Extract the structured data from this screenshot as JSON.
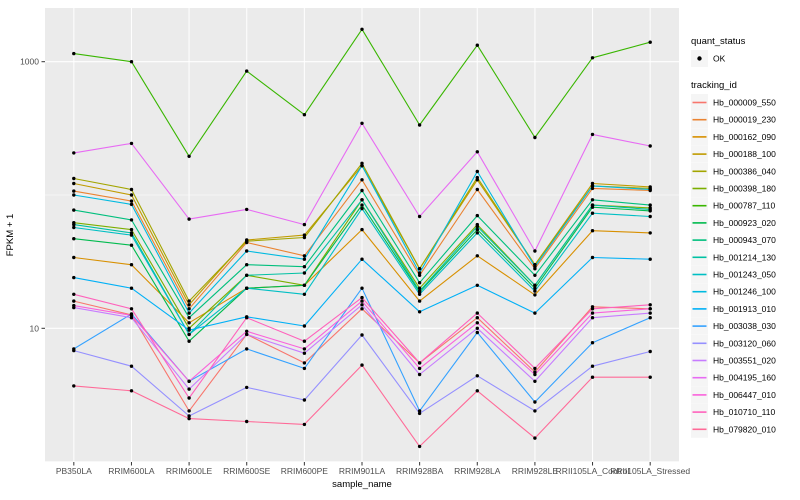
{
  "chart_data": {
    "type": "line",
    "title": "",
    "xlabel": "sample_name",
    "ylabel": "FPKM + 1",
    "y_scale": "log10",
    "y_tick_labels": [
      "1000",
      "10"
    ],
    "y_ticks": [
      1000,
      10
    ],
    "y_minor_gridlines": [
      100,
      1
    ],
    "ylim": [
      0.85,
      2500
    ],
    "grid": true,
    "panel_bg": "#EBEBEB",
    "grid_color": "#FFFFFF",
    "point_color": "#000000",
    "axis_text_color": "#4D4D4D",
    "categories": [
      "PB350LA",
      "RRIM600LA",
      "RRIM600LE",
      "RRIM600SE",
      "RRIM600PE",
      "RRIM901LA",
      "RRIM928BA",
      "RRIM928LA",
      "RRIM928LE",
      "RRII105LA_Control",
      "RRII105LA_Stressed"
    ],
    "series": [
      {
        "name": "Hb_000009_550",
        "color": "#F8766D",
        "values": [
          16,
          12.6,
          2.4,
          9,
          5.5,
          14,
          5.5,
          12,
          4.7,
          14.5,
          14
        ]
      },
      {
        "name": "Hb_000019_230",
        "color": "#EA8331",
        "values": [
          107,
          90,
          14,
          44,
          35,
          130,
          25,
          110,
          28,
          112,
          108
        ]
      },
      {
        "name": "Hb_000162_090",
        "color": "#D89000",
        "values": [
          34,
          30,
          11,
          20,
          21,
          55,
          16,
          35,
          17.8,
          54,
          52
        ]
      },
      {
        "name": "Hb_000188_100",
        "color": "#C09B00",
        "values": [
          122,
          100,
          15,
          46,
          50,
          166,
          28,
          130,
          30,
          122,
          115
        ]
      },
      {
        "name": "Hb_000386_040",
        "color": "#A3A500",
        "values": [
          133,
          110,
          16,
          45,
          48,
          173,
          28,
          135,
          30,
          117,
          112
        ]
      },
      {
        "name": "Hb_000398_180",
        "color": "#7CAE00",
        "values": [
          62,
          55,
          10,
          25,
          21,
          92,
          20,
          60,
          21,
          84,
          80
        ]
      },
      {
        "name": "Hb_000787_110",
        "color": "#39B600",
        "values": [
          1150,
          1000,
          195,
          850,
          400,
          1750,
          335,
          1330,
          270,
          1070,
          1400
        ]
      },
      {
        "name": "Hb_000923_020",
        "color": "#00BB4E",
        "values": [
          47,
          42,
          8,
          20,
          21,
          84,
          18.7,
          55,
          20,
          81,
          76
        ]
      },
      {
        "name": "Hb_000943_070",
        "color": "#00BF7D",
        "values": [
          77,
          65,
          12,
          30,
          29,
          108,
          22,
          70,
          25,
          92,
          84
        ]
      },
      {
        "name": "Hb_001214_130",
        "color": "#00C1A3",
        "values": [
          60,
          52,
          9,
          25,
          26,
          92,
          19,
          58,
          21,
          84,
          78
        ]
      },
      {
        "name": "Hb_001243_050",
        "color": "#00BFC4",
        "values": [
          57,
          50,
          9,
          20,
          18,
          79,
          18,
          52,
          19,
          73,
          69
        ]
      },
      {
        "name": "Hb_001246_100",
        "color": "#00BAE0",
        "values": [
          100,
          85,
          13,
          38,
          33,
          166,
          26,
          150,
          29,
          117,
          110
        ]
      },
      {
        "name": "Hb_001913_010",
        "color": "#00B0F6",
        "values": [
          24,
          20,
          9.7,
          12.2,
          10.4,
          33,
          13.3,
          21,
          13,
          34,
          33
        ]
      },
      {
        "name": "Hb_003038_030",
        "color": "#35A2FF",
        "values": [
          7,
          12.8,
          4,
          7,
          5,
          20,
          2.4,
          9.3,
          2.8,
          7.8,
          12
        ]
      },
      {
        "name": "Hb_003120_060",
        "color": "#9590FF",
        "values": [
          6.8,
          5.2,
          2.2,
          3.6,
          2.9,
          8.9,
          2.3,
          4.4,
          2.4,
          5.2,
          6.7
        ]
      },
      {
        "name": "Hb_003551_020",
        "color": "#C77CFF",
        "values": [
          14.3,
          12,
          3.5,
          9,
          6.5,
          15,
          4.5,
          10,
          4,
          12,
          13
        ]
      },
      {
        "name": "Hb_004195_160",
        "color": "#E76BF3",
        "values": [
          207,
          244,
          66,
          78,
          60,
          345,
          69,
          211,
          38,
          285,
          233
        ]
      },
      {
        "name": "Hb_006447_010",
        "color": "#FA62DB",
        "values": [
          14.8,
          12.5,
          4,
          9.5,
          7,
          16,
          5,
          11,
          4.5,
          13,
          14
        ]
      },
      {
        "name": "Hb_010710_110",
        "color": "#FF62BC",
        "values": [
          18,
          14,
          3,
          12,
          8,
          17,
          5.5,
          13,
          5,
          14,
          15
        ]
      },
      {
        "name": "Hb_079820_010",
        "color": "#FF6A98",
        "values": [
          3.7,
          3.4,
          2.1,
          2,
          1.9,
          5.3,
          1.3,
          3.4,
          1.5,
          4.3,
          4.3
        ]
      }
    ],
    "legend": {
      "position": "right",
      "key_bg": "#F5F5F5",
      "quant_status": {
        "title": "quant_status",
        "items": [
          {
            "label": "OK",
            "marker": "point",
            "color": "#000000"
          }
        ]
      },
      "tracking_id": {
        "title": "tracking_id"
      }
    }
  }
}
